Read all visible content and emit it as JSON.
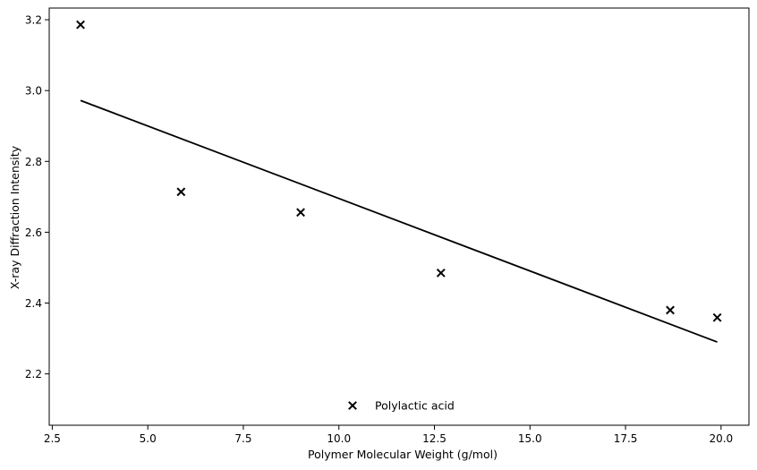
{
  "chart_data": {
    "type": "scatter",
    "title": "",
    "xlabel": "Polymer Molecular Weight (g/mol)",
    "ylabel": "X-ray Diffraction Intensity",
    "xlim": [
      2.42,
      20.73
    ],
    "ylim": [
      2.055,
      3.233
    ],
    "x_ticks": [
      "2.5",
      "5.0",
      "7.5",
      "10.0",
      "12.5",
      "15.0",
      "17.5",
      "20.0"
    ],
    "y_ticks": [
      "2.2",
      "2.4",
      "2.6",
      "2.8",
      "3.0",
      "3.2"
    ],
    "grid": false,
    "legend_position": "lower-center",
    "series": [
      {
        "name": "Polylactic acid",
        "marker": "x",
        "color": "#000000",
        "x": [
          3.24,
          5.87,
          9.0,
          12.67,
          18.67,
          19.9
        ],
        "y": [
          3.186,
          2.714,
          2.656,
          2.485,
          2.38,
          2.359
        ]
      }
    ],
    "trend_line": {
      "x": [
        3.24,
        19.9
      ],
      "y": [
        2.972,
        2.29
      ],
      "color": "#000000"
    }
  }
}
